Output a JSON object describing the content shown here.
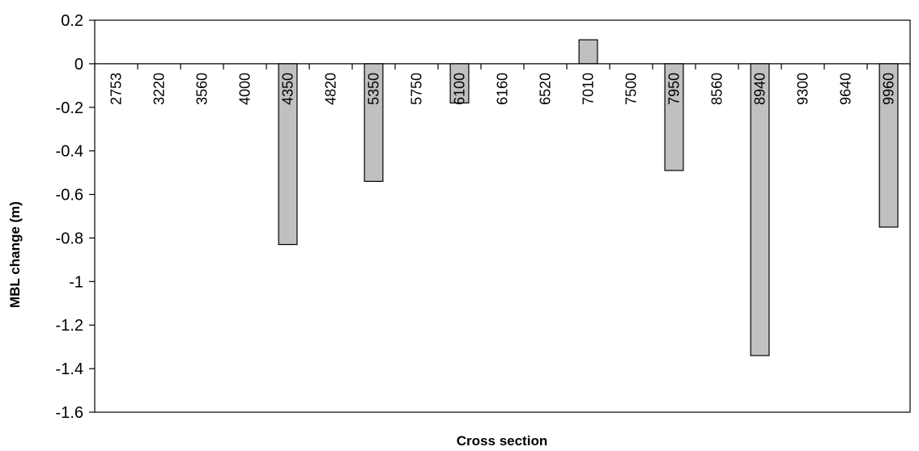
{
  "chart_data": {
    "type": "bar",
    "title": "",
    "xlabel": "Cross section",
    "ylabel": "MBL change (m)",
    "ylim": [
      -1.6,
      0.2
    ],
    "ytick_step": 0.2,
    "yticks": [
      "0.2",
      "0",
      "-0.2",
      "-0.4",
      "-0.6",
      "-0.8",
      "-1",
      "-1.2",
      "-1.4",
      "-1.6"
    ],
    "categories": [
      "2753",
      "3220",
      "3560",
      "4000",
      "4350",
      "4820",
      "5350",
      "5750",
      "6100",
      "6160",
      "6520",
      "7010",
      "7500",
      "7950",
      "8560",
      "8940",
      "9300",
      "9640",
      "9960"
    ],
    "values": [
      0,
      0,
      0,
      0,
      -0.83,
      0,
      -0.54,
      0,
      -0.18,
      0,
      0,
      0.11,
      0,
      -0.49,
      0,
      -1.34,
      0,
      0,
      -0.75
    ],
    "grid": false,
    "legend": "none",
    "bar_color": "#c0c0c0",
    "bar_edge_color": "#000000"
  }
}
